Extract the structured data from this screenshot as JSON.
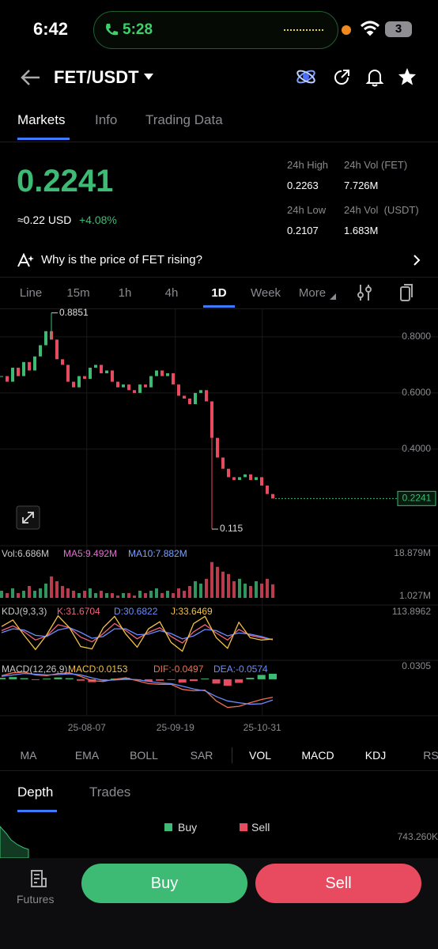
{
  "status_bar": {
    "time": "6:42",
    "call": "5:28",
    "battery": "3"
  },
  "header": {
    "pair": "FET/USDT"
  },
  "tabs": [
    "Markets",
    "Info",
    "Trading Data"
  ],
  "price": {
    "last": "0.2241",
    "usd": "≈0.22 USD",
    "change": "+4.08%"
  },
  "stats": [
    {
      "label": "24h High",
      "value": "0.2263"
    },
    {
      "label": "24h Vol (FET)",
      "value": "7.726M"
    },
    {
      "label": "24h Low",
      "value": "0.2107"
    },
    {
      "label": "24h Vol  (USDT)",
      "value": "1.683M"
    }
  ],
  "insight": "Why is the price of FET rising?",
  "intervals": [
    "Line",
    "15m",
    "1h",
    "4h",
    "1D",
    "Week",
    "More"
  ],
  "chart_data": [
    {
      "type": "candlestick",
      "up_color": "#3dbb74",
      "down_color": "#e84a5f",
      "closes": [
        0.66,
        0.64,
        0.69,
        0.66,
        0.71,
        0.68,
        0.73,
        0.77,
        0.82,
        0.79,
        0.72,
        0.7,
        0.64,
        0.62,
        0.66,
        0.65,
        0.69,
        0.7,
        0.67,
        0.68,
        0.64,
        0.62,
        0.63,
        0.61,
        0.6,
        0.63,
        0.62,
        0.66,
        0.68,
        0.66,
        0.67,
        0.63,
        0.59,
        0.58,
        0.56,
        0.6,
        0.61,
        0.57,
        0.44,
        0.37,
        0.33,
        0.3,
        0.29,
        0.3,
        0.31,
        0.29,
        0.3,
        0.27,
        0.24,
        0.2241
      ],
      "ylim": [
        0.056,
        0.901
      ],
      "yticks": [
        {
          "value": 0.8,
          "label": "0.8000"
        },
        {
          "value": 0.6,
          "label": "0.6000"
        },
        {
          "value": 0.4,
          "label": "0.4000"
        }
      ],
      "xticks": [
        {
          "value": 15.4,
          "label": "25-08-07"
        },
        {
          "value": 31.4,
          "label": "25-09-19"
        },
        {
          "value": 47.1,
          "label": "25-10-31"
        }
      ],
      "annotations": [
        {
          "value": 0.8851,
          "index": 9
        },
        {
          "value": 0.115,
          "index": 38
        }
      ],
      "last_price": 0.2241,
      "grid": true
    },
    {
      "type": "bar",
      "legend": [
        {
          "label": "Vol:6.686M",
          "color": "#c8c8cc"
        },
        {
          "label": "MA5:9.492M",
          "color": "#e070d0"
        },
        {
          "label": "MA10:7.882M",
          "color": "#7aa2ff"
        }
      ],
      "values": [
        4,
        3,
        5,
        3,
        4,
        6,
        4,
        5,
        7,
        10,
        8,
        6,
        5,
        4,
        3,
        4,
        5,
        3,
        4,
        3,
        3,
        2,
        3,
        3,
        2,
        4,
        3,
        4,
        5,
        3,
        4,
        3,
        5,
        4,
        6,
        8,
        7,
        9,
        16,
        14,
        12,
        11,
        8,
        9,
        7,
        6,
        8,
        7,
        9,
        6.686
      ],
      "ylim": [
        1.027,
        18.879
      ],
      "yticks": [
        {
          "value": 18.879,
          "label": "18.879M"
        },
        {
          "value": 1.027,
          "label": "1.027M"
        }
      ]
    },
    {
      "type": "line",
      "legend": [
        {
          "label": "KDJ(9,3,3)",
          "color": "#c8c8cc"
        },
        {
          "label": "K:31.6704",
          "color": "#f0647a"
        },
        {
          "label": "D:30.6822",
          "color": "#6b8cff"
        },
        {
          "label": "J:33.6469",
          "color": "#f5c242"
        }
      ],
      "series": [
        {
          "color": "#f0647a",
          "values": [
            62,
            78,
            58,
            30,
            44,
            82,
            72,
            40,
            24,
            52,
            86,
            62,
            34,
            56,
            72,
            42,
            20,
            58,
            82,
            54,
            30,
            66,
            46,
            38,
            31.6704
          ]
        },
        {
          "color": "#6b8cff",
          "values": [
            55,
            68,
            64,
            46,
            42,
            64,
            72,
            56,
            36,
            42,
            68,
            68,
            48,
            50,
            62,
            52,
            34,
            44,
            66,
            62,
            44,
            54,
            50,
            42,
            30.6822
          ]
        },
        {
          "color": "#f5c242",
          "values": [
            76,
            98,
            46,
            -2,
            48,
            112,
            72,
            8,
            0,
            72,
            110,
            50,
            6,
            68,
            92,
            22,
            -8,
            86,
            110,
            38,
            2,
            90,
            38,
            30,
            33.6469
          ]
        }
      ],
      "ylim": [
        -20,
        113.8962
      ],
      "yticks": [
        113.8962
      ]
    },
    {
      "type": "macd",
      "legend": [
        {
          "label": "MACD(12,26,9)",
          "color": "#c8c8cc"
        },
        {
          "label": "MACD:0.0153",
          "color": "#f5c242"
        },
        {
          "label": "DIF:-0.0497",
          "color": "#f07050"
        },
        {
          "label": "DEA:-0.0574",
          "color": "#6b8cff"
        }
      ],
      "histogram": [
        0.004,
        0.006,
        0.003,
        -0.002,
        0.002,
        0.005,
        0.003,
        -0.004,
        -0.008,
        -0.003,
        0.002,
        0.004,
        -0.003,
        -0.006,
        -0.004,
        -0.002,
        -0.009,
        -0.005,
        0.002,
        -0.012,
        -0.018,
        -0.01,
        0.004,
        0.012,
        0.0153
      ],
      "series": [
        {
          "color": "#f07050",
          "values": [
            0.01,
            0.018,
            0.02,
            0.012,
            0.01,
            0.016,
            0.018,
            0.008,
            -0.004,
            -0.006,
            0,
            0.004,
            -0.004,
            -0.012,
            -0.014,
            -0.014,
            -0.028,
            -0.032,
            -0.03,
            -0.06,
            -0.078,
            -0.075,
            -0.065,
            -0.056,
            -0.0497
          ]
        },
        {
          "color": "#6b8cff",
          "values": [
            0.008,
            0.012,
            0.016,
            0.014,
            0.012,
            0.013,
            0.015,
            0.012,
            0.004,
            -0.003,
            -0.002,
            0,
            -0.001,
            -0.006,
            -0.01,
            -0.012,
            -0.019,
            -0.027,
            -0.032,
            -0.048,
            -0.06,
            -0.065,
            -0.069,
            -0.068,
            -0.0574
          ]
        }
      ],
      "up_color": "#3dbb74",
      "down_color": "#e84a5f",
      "ylim": [
        -0.09,
        0.0305
      ],
      "yticks": [
        0.0305
      ]
    }
  ],
  "indicators": [
    "MA",
    "EMA",
    "BOLL",
    "SAR",
    "VOL",
    "MACD",
    "KDJ",
    "RS"
  ],
  "depth": {
    "tabs": [
      "Depth",
      "Trades"
    ],
    "legend": [
      "Buy",
      "Sell"
    ],
    "max_label": "743.260K"
  },
  "footer": {
    "futures": "Futures",
    "buy": "Buy",
    "sell": "Sell"
  }
}
